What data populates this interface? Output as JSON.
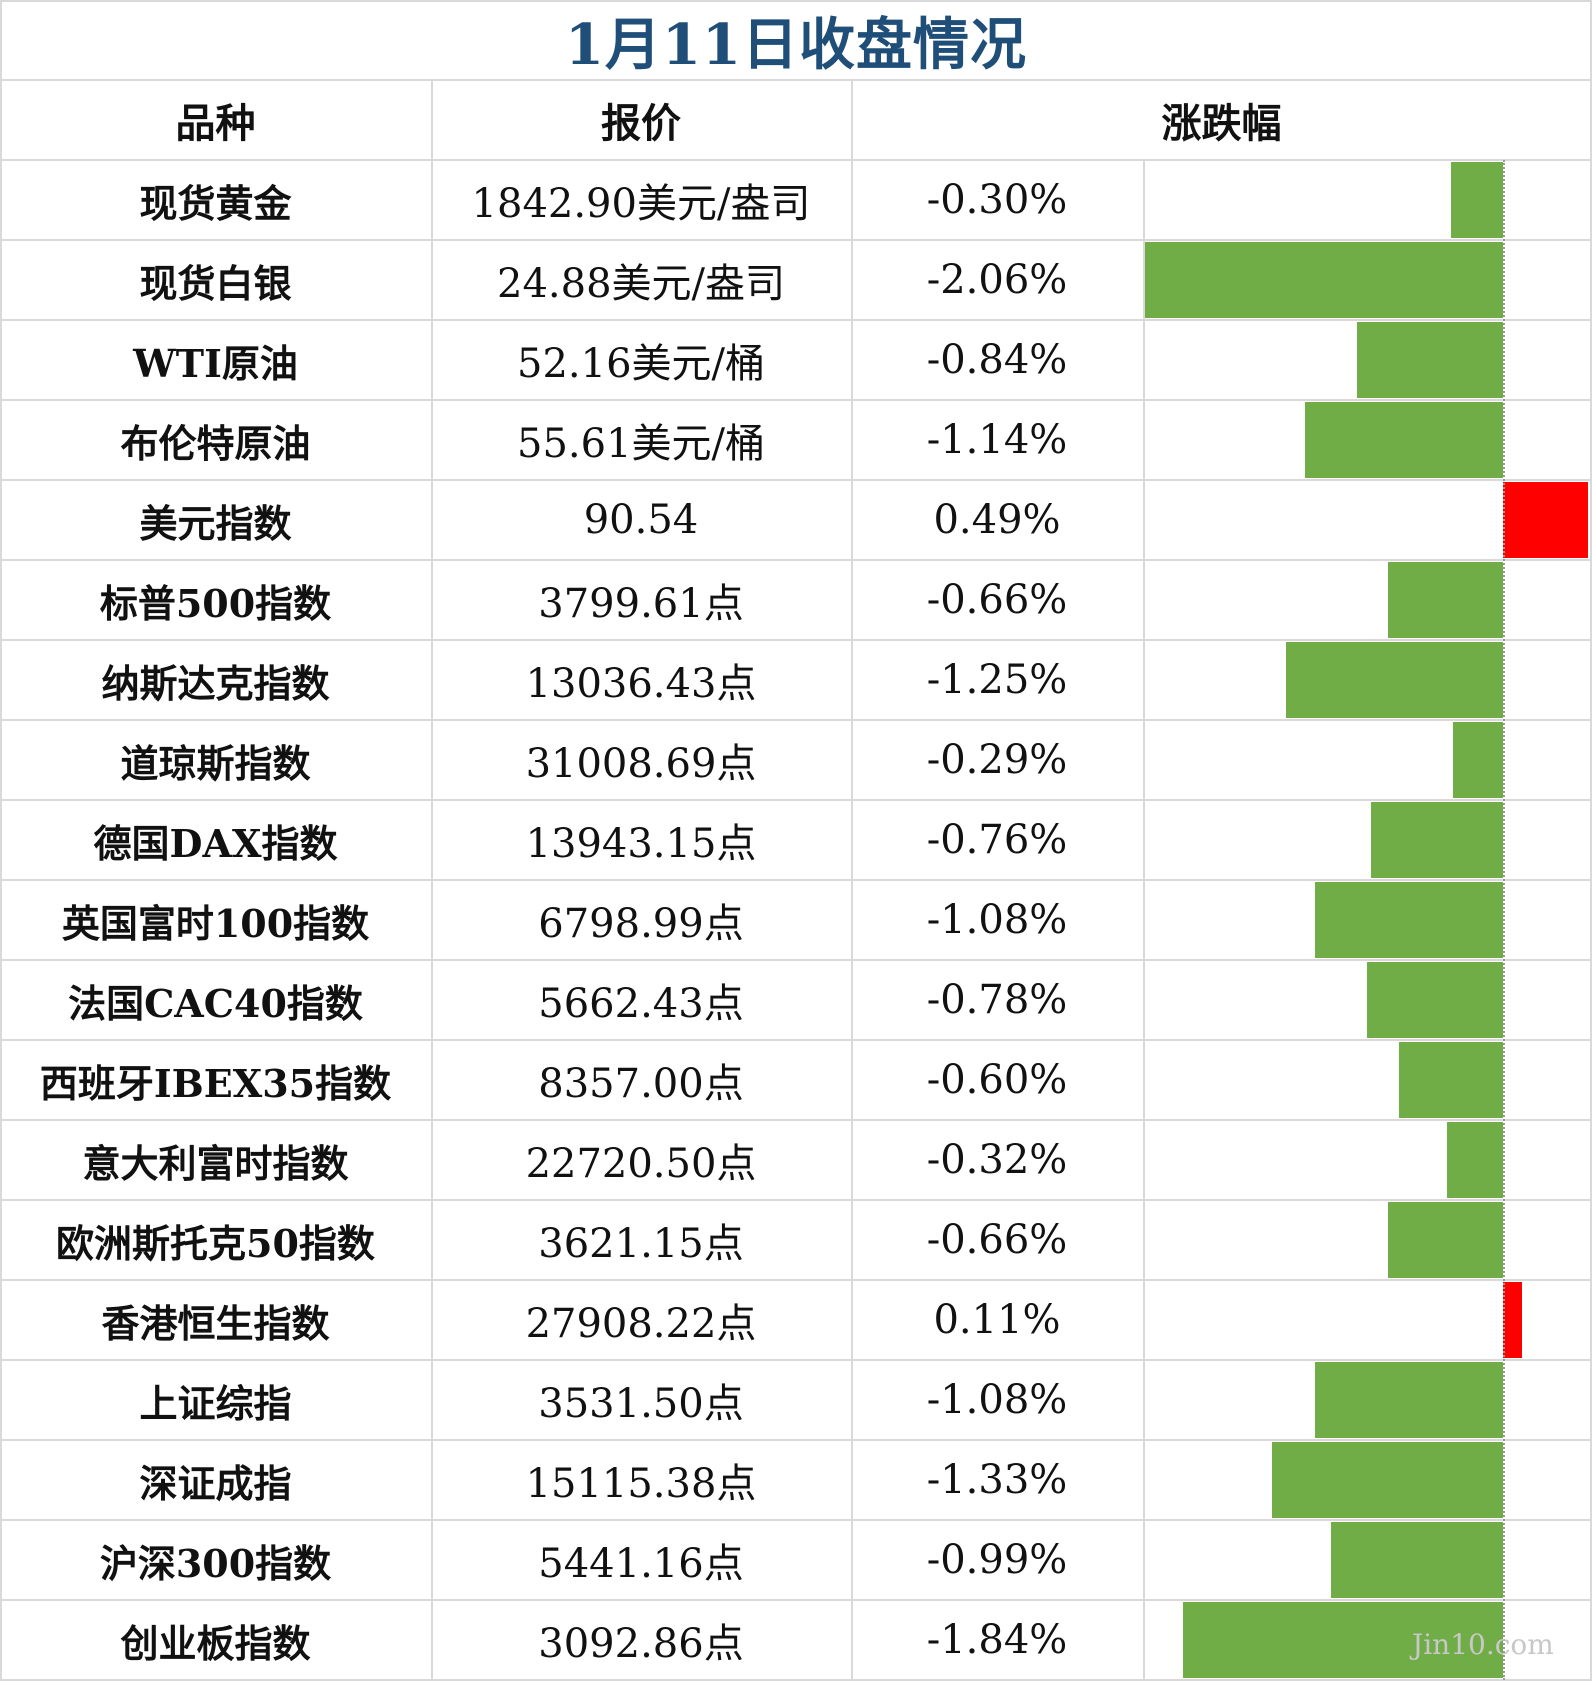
{
  "title": "1月11日收盘情况",
  "headers": {
    "name": "品种",
    "price": "报价",
    "change": "涨跌幅"
  },
  "rows": [
    {
      "name": "现货黄金",
      "price": "1842.90美元/盎司",
      "change_label": "-0.30%"
    },
    {
      "name": "现货白银",
      "price": "24.88美元/盎司",
      "change_label": "-2.06%"
    },
    {
      "name": "WTI原油",
      "price": "52.16美元/桶",
      "change_label": "-0.84%"
    },
    {
      "name": "布伦特原油",
      "price": "55.61美元/桶",
      "change_label": "-1.14%"
    },
    {
      "name": "美元指数",
      "price": "90.54",
      "change_label": "0.49%"
    },
    {
      "name": "标普500指数",
      "price": "3799.61点",
      "change_label": "-0.66%"
    },
    {
      "name": "纳斯达克指数",
      "price": "13036.43点",
      "change_label": "-1.25%"
    },
    {
      "name": "道琼斯指数",
      "price": "31008.69点",
      "change_label": "-0.29%"
    },
    {
      "name": "德国DAX指数",
      "price": "13943.15点",
      "change_label": "-0.76%"
    },
    {
      "name": "英国富时100指数",
      "price": "6798.99点",
      "change_label": "-1.08%"
    },
    {
      "name": "法国CAC40指数",
      "price": "5662.43点",
      "change_label": "-0.78%"
    },
    {
      "name": "西班牙IBEX35指数",
      "price": "8357.00点",
      "change_label": "-0.60%"
    },
    {
      "name": "意大利富时指数",
      "price": "22720.50点",
      "change_label": "-0.32%"
    },
    {
      "name": "欧洲斯托克50指数",
      "price": "3621.15点",
      "change_label": "-0.66%"
    },
    {
      "name": "香港恒生指数",
      "price": "27908.22点",
      "change_label": "0.11%"
    },
    {
      "name": "上证综指",
      "price": "3531.50点",
      "change_label": "-1.08%"
    },
    {
      "name": "深证成指",
      "price": "15115.38点",
      "change_label": "-1.33%"
    },
    {
      "name": "沪深300指数",
      "price": "5441.16点",
      "change_label": "-0.99%"
    },
    {
      "name": "创业板指数",
      "price": "3092.86点",
      "change_label": "-1.84%"
    }
  ],
  "colors": {
    "negative": "#70ad47",
    "positive": "#ff0000",
    "title": "#1f4e79"
  },
  "watermark": "Jin10.com",
  "chart_data": {
    "type": "bar",
    "orientation": "horizontal",
    "title": "1月11日收盘情况",
    "categories": [
      "现货黄金",
      "现货白银",
      "WTI原油",
      "布伦特原油",
      "美元指数",
      "标普500指数",
      "纳斯达克指数",
      "道琼斯指数",
      "德国DAX指数",
      "英国富时100指数",
      "法国CAC40指数",
      "西班牙IBEX35指数",
      "意大利富时指数",
      "欧洲斯托克50指数",
      "香港恒生指数",
      "上证综指",
      "深证成指",
      "沪深300指数",
      "创业板指数"
    ],
    "values": [
      -0.3,
      -2.06,
      -0.84,
      -1.14,
      0.49,
      -0.66,
      -1.25,
      -0.29,
      -0.76,
      -1.08,
      -0.78,
      -0.6,
      -0.32,
      -0.66,
      0.11,
      -1.08,
      -1.33,
      -0.99,
      -1.84
    ],
    "unit": "%",
    "xlim": [
      -2.06,
      0.49
    ]
  }
}
